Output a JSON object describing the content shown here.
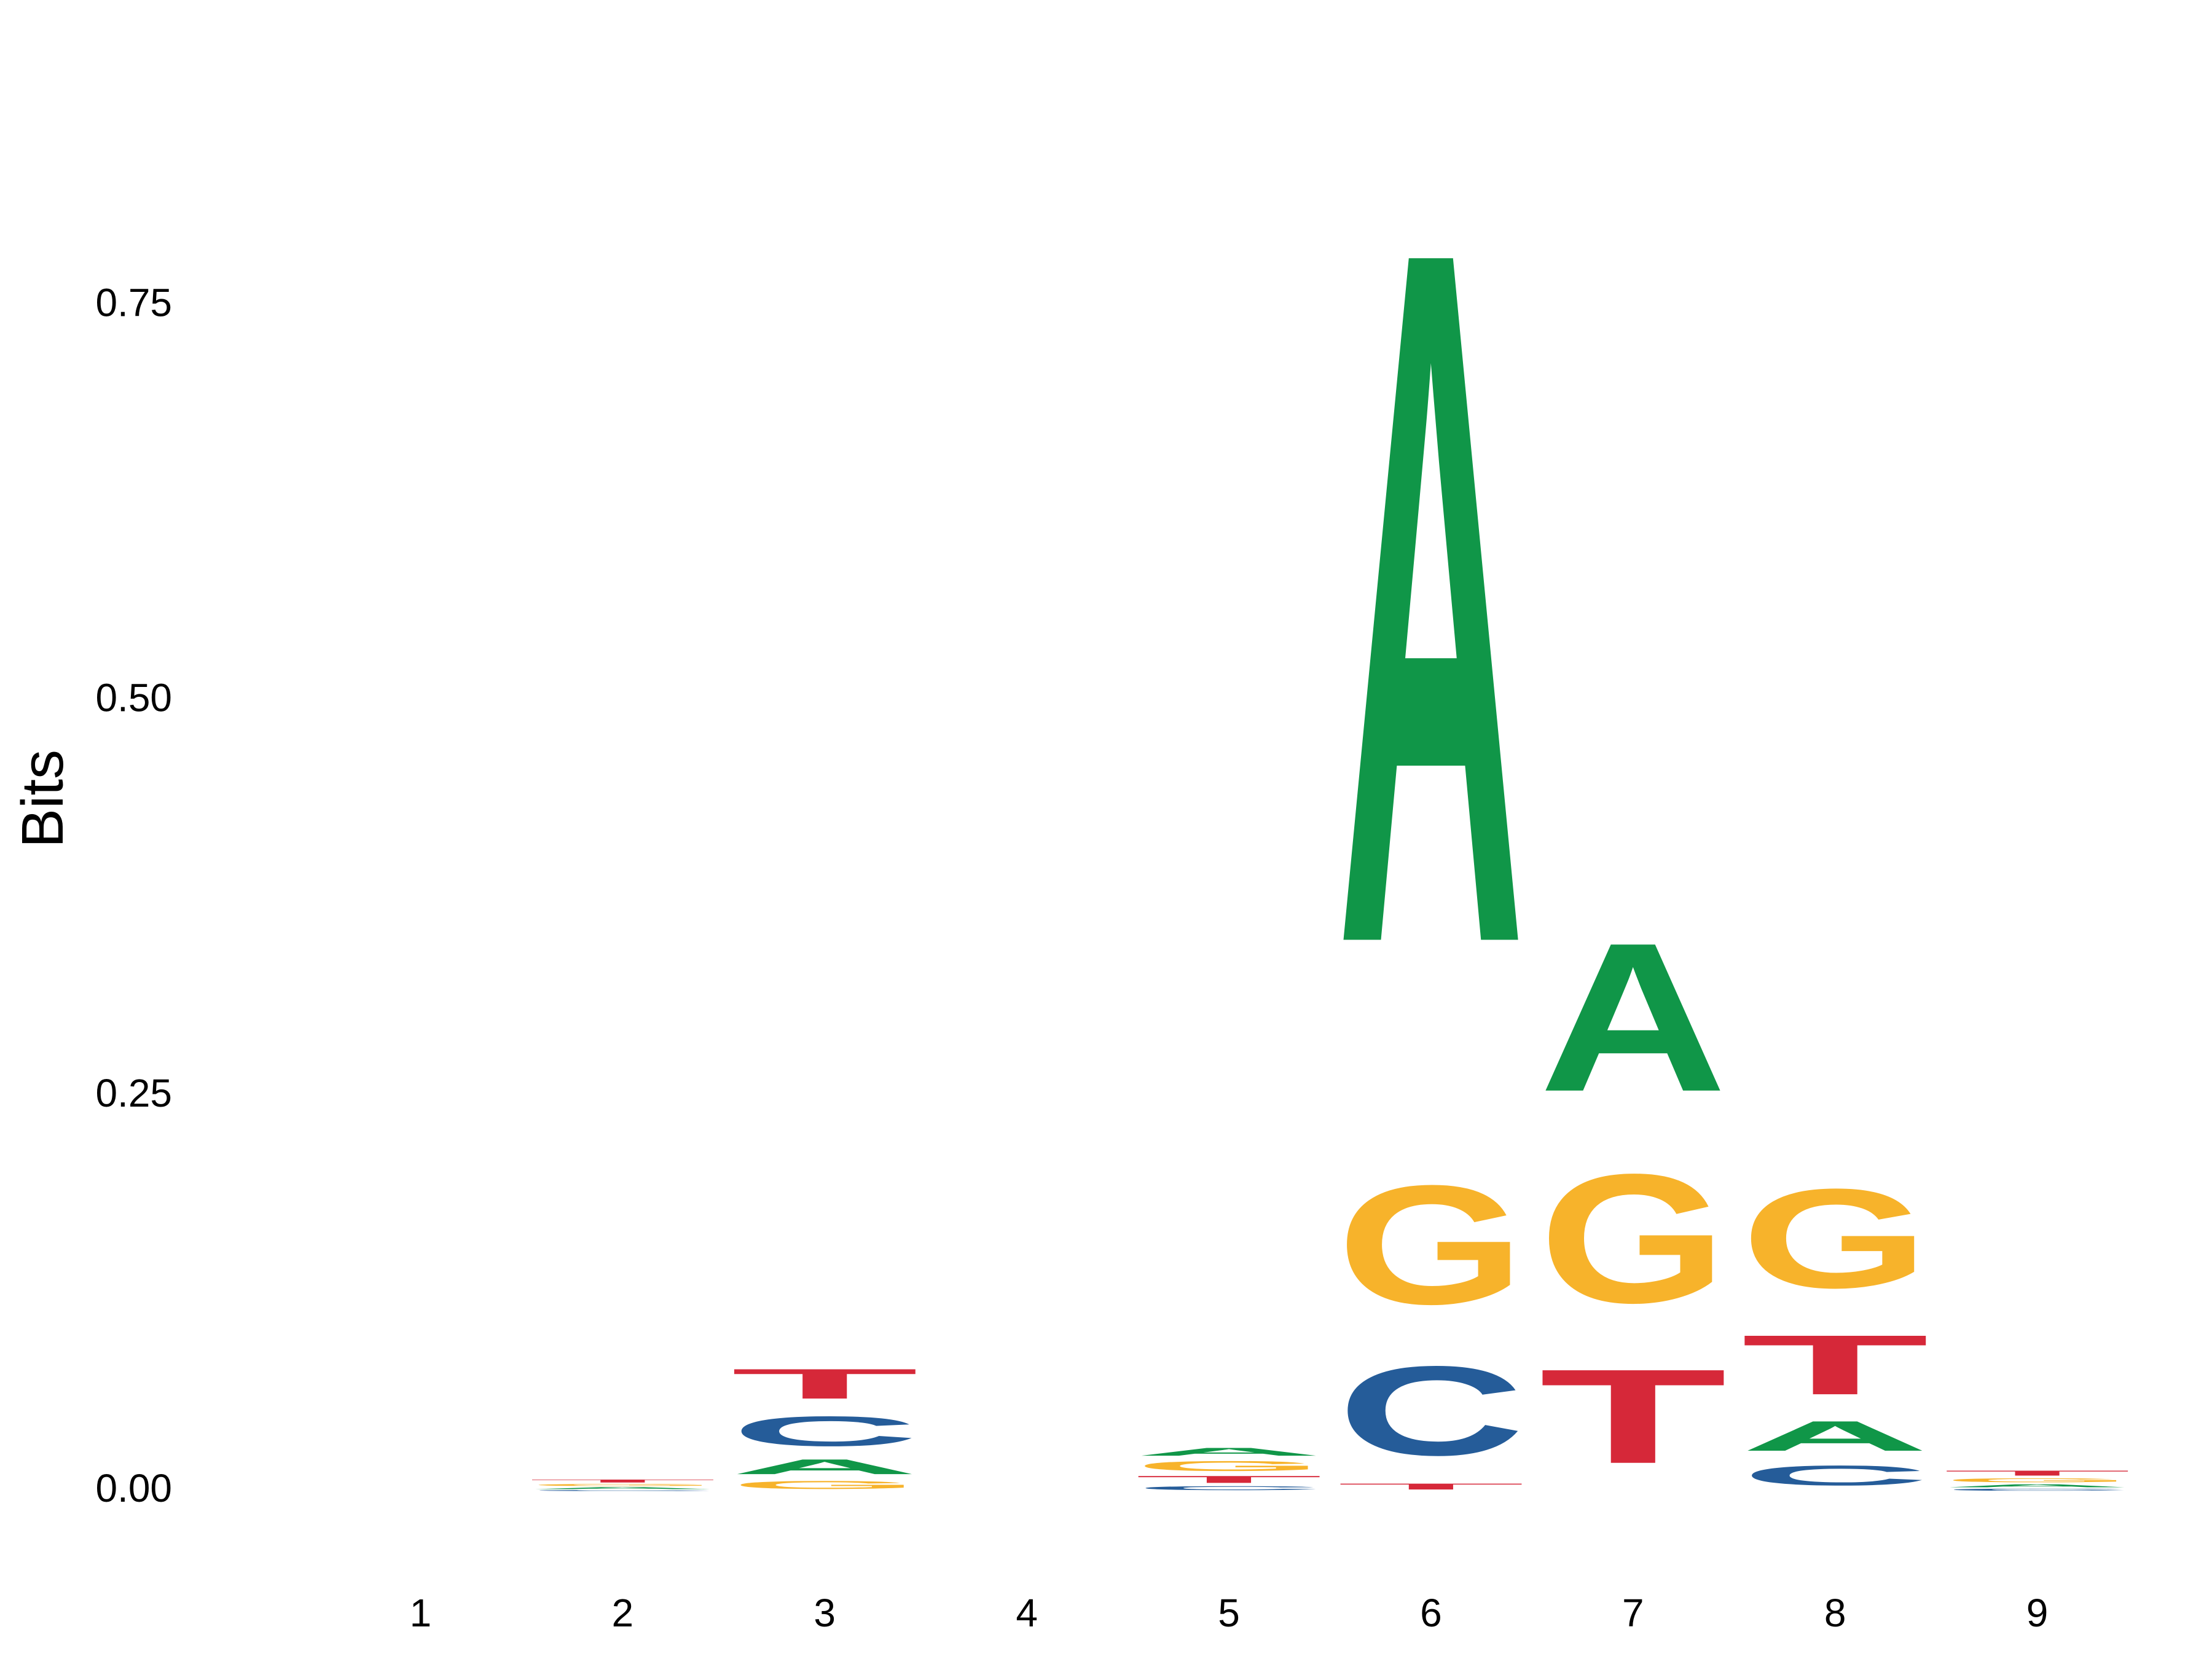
{
  "chart_data": {
    "type": "sequence-logo",
    "title": "",
    "xlabel": "",
    "ylabel": "Bits",
    "ylim": [
      -0.04,
      0.92
    ],
    "yticks": [
      0.0,
      0.25,
      0.5,
      0.75
    ],
    "ytick_labels": [
      "0.00",
      "0.25",
      "0.50",
      "0.75"
    ],
    "positions": [
      "1",
      "2",
      "3",
      "4",
      "5",
      "6",
      "7",
      "8",
      "9"
    ],
    "colors": {
      "A": "#109648",
      "C": "#255C99",
      "G": "#F7B32B",
      "T": "#D62839"
    },
    "columns": [
      {
        "position": "1",
        "letters": []
      },
      {
        "position": "2",
        "letters": [
          {
            "letter": "C",
            "bits": 0.001
          },
          {
            "letter": "A",
            "bits": 0.002
          },
          {
            "letter": "G",
            "bits": 0.002
          },
          {
            "letter": "T",
            "bits": 0.003
          }
        ]
      },
      {
        "position": "3",
        "letters": [
          {
            "letter": "G",
            "bits": 0.008
          },
          {
            "letter": "A",
            "bits": 0.015
          },
          {
            "letter": "C",
            "bits": 0.03
          },
          {
            "letter": "T",
            "bits": 0.03
          }
        ]
      },
      {
        "position": "4",
        "letters": []
      },
      {
        "position": "5",
        "letters": [
          {
            "letter": "C",
            "bits": 0.004
          },
          {
            "letter": "T",
            "bits": 0.007
          },
          {
            "letter": "G",
            "bits": 0.01
          },
          {
            "letter": "A",
            "bits": 0.008
          }
        ]
      },
      {
        "position": "6",
        "letters": [
          {
            "letter": "T",
            "bits": 0.006
          },
          {
            "letter": "C",
            "bits": 0.09
          },
          {
            "letter": "G",
            "bits": 0.12
          },
          {
            "letter": "A",
            "bits": 0.7
          }
        ]
      },
      {
        "position": "7",
        "letters": [
          {
            "letter": "T",
            "bits": 0.095
          },
          {
            "letter": "G",
            "bits": 0.13
          },
          {
            "letter": "A",
            "bits": 0.15
          }
        ]
      },
      {
        "position": "8",
        "letters": [
          {
            "letter": "C",
            "bits": 0.02
          },
          {
            "letter": "A",
            "bits": 0.03
          },
          {
            "letter": "T",
            "bits": 0.06
          },
          {
            "letter": "G",
            "bits": 0.1
          }
        ]
      },
      {
        "position": "9",
        "letters": [
          {
            "letter": "C",
            "bits": 0.002
          },
          {
            "letter": "A",
            "bits": 0.003
          },
          {
            "letter": "G",
            "bits": 0.004
          },
          {
            "letter": "T",
            "bits": 0.005
          }
        ]
      }
    ]
  }
}
